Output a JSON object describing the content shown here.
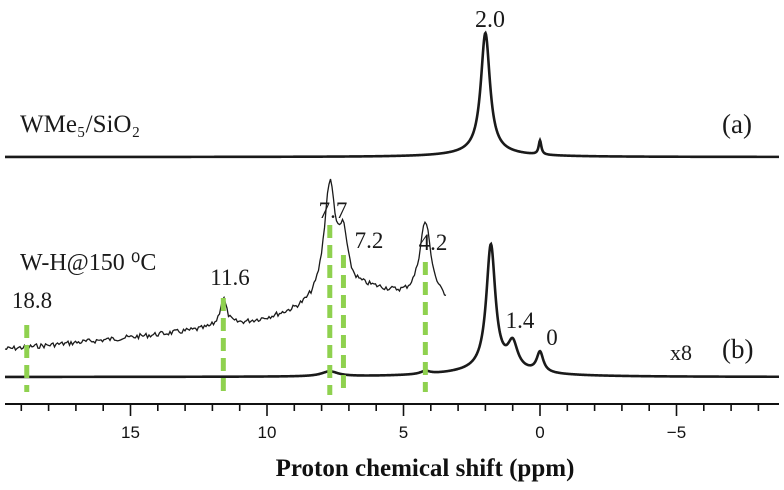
{
  "chart_data": {
    "type": "line",
    "xlabel": "Proton chemical shift (ppm)",
    "xlim": [
      20,
      -9
    ],
    "x_ticks": [
      15,
      10,
      5,
      0,
      -5
    ],
    "x_tick_labels": [
      "15",
      "10",
      "5",
      "0",
      "−5"
    ],
    "guide_color": "#8fd14f",
    "trace_color": "#1a1a1a",
    "spectra": [
      {
        "id": "a",
        "tag": "(a)",
        "sample_label": "WMe₅/SiO₂",
        "peaks": [
          {
            "x": 2.0,
            "label": "2.0"
          },
          {
            "x": 0.0,
            "label": ""
          }
        ]
      },
      {
        "id": "b",
        "tag": "(b)",
        "sample_label": "W-H@150 ⁰C",
        "scale_label": "x8",
        "peaks": [
          {
            "x": 18.8,
            "label": "18.8"
          },
          {
            "x": 11.6,
            "label": "11.6"
          },
          {
            "x": 7.7,
            "label": "7.7"
          },
          {
            "x": 7.2,
            "label": "7.2"
          },
          {
            "x": 4.2,
            "label": "4.2"
          },
          {
            "x": 1.4,
            "label": "1.4"
          },
          {
            "x": 0.0,
            "label": "0"
          }
        ]
      }
    ]
  }
}
